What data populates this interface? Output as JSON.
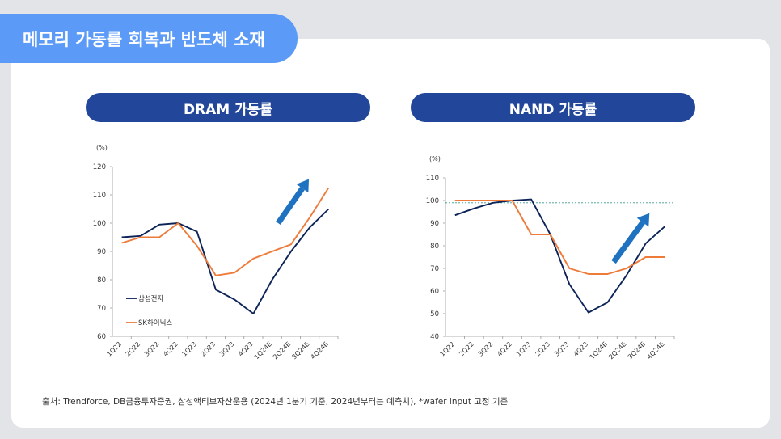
{
  "header": {
    "title": "메모리 가동률 회복과 반도체 소재"
  },
  "footer": {
    "source": "출처: Trendforce, DB금융투자증권, 삼성액티브자산운용 (2024년 1분기 기준, 2024년부터는 예측치), *wafer input 고정 기준"
  },
  "colors": {
    "navy": "#0d2459",
    "orange": "#ee7b3a",
    "accent_blue": "#5b9bf7",
    "pill_blue": "#22479a",
    "arrow_blue": "#1e72c0",
    "ref_line": "#3a9a8a"
  },
  "chart_data": [
    {
      "type": "line",
      "title": "DRAM 가동률",
      "unit_label": "(%)",
      "categories": [
        "1Q22",
        "2Q22",
        "3Q22",
        "4Q22",
        "1Q23",
        "2Q23",
        "3Q23",
        "4Q23",
        "1Q24E",
        "2Q24E",
        "3Q24E",
        "4Q24E"
      ],
      "ylim": [
        60,
        120
      ],
      "yticks": [
        60,
        70,
        80,
        90,
        100,
        110,
        120
      ],
      "reference_line": 99,
      "legend": "inside-left",
      "series": [
        {
          "name": "삼성전자",
          "color": "#0d2459",
          "values": [
            95,
            95.5,
            99.5,
            100,
            97,
            76.5,
            73,
            68,
            80,
            90,
            98.5,
            105
          ]
        },
        {
          "name": "SK하이닉스",
          "color": "#ee7b3a",
          "values": [
            93,
            95,
            95,
            100,
            92,
            81.5,
            82.5,
            87.5,
            90,
            92.5,
            102,
            112.5
          ]
        }
      ],
      "arrow": "up-right"
    },
    {
      "type": "line",
      "title": "NAND 가동률",
      "unit_label": "(%)",
      "categories": [
        "1Q22",
        "2Q22",
        "3Q22",
        "4Q22",
        "1Q23",
        "2Q23",
        "3Q23",
        "4Q23",
        "1Q24E",
        "2Q24E",
        "3Q24E",
        "4Q24E"
      ],
      "ylim": [
        40,
        110
      ],
      "yticks": [
        40,
        50,
        60,
        70,
        80,
        90,
        100,
        110
      ],
      "reference_line": 99,
      "series": [
        {
          "name": "삼성전자",
          "color": "#0d2459",
          "values": [
            93.5,
            96.5,
            99,
            100,
            100.5,
            85,
            63,
            50.5,
            55,
            67,
            81,
            88.5
          ]
        },
        {
          "name": "SK하이닉스",
          "color": "#ee7b3a",
          "values": [
            100,
            100,
            100,
            100,
            85,
            85,
            70,
            67.5,
            67.5,
            70,
            75,
            75
          ]
        }
      ],
      "arrow": "up-right"
    }
  ]
}
